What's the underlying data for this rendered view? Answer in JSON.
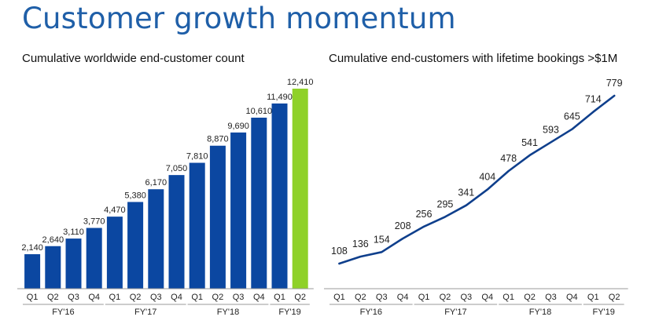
{
  "page": {
    "title": "Customer growth momentum"
  },
  "colors": {
    "title": "#1f5fa8",
    "bar": "#0b47a1",
    "bar_highlight": "#8fd129",
    "line": "#0f3f8c",
    "axis": "#999999"
  },
  "chart_data": [
    {
      "type": "bar",
      "title": "Cumulative worldwide end-customer count",
      "xlabel": "",
      "ylabel": "",
      "categories": [
        "Q1",
        "Q2",
        "Q3",
        "Q4",
        "Q1",
        "Q2",
        "Q3",
        "Q4",
        "Q1",
        "Q2",
        "Q3",
        "Q4",
        "Q1",
        "Q2"
      ],
      "fiscal_years": [
        {
          "label": "FY'16",
          "span": 4
        },
        {
          "label": "FY'17",
          "span": 4
        },
        {
          "label": "FY'18",
          "span": 4
        },
        {
          "label": "FY'19",
          "span": 2
        }
      ],
      "values": [
        2140,
        2640,
        3110,
        3770,
        4470,
        5380,
        6170,
        7050,
        7810,
        8870,
        9690,
        10610,
        11490,
        12410
      ],
      "value_labels": [
        "2,140",
        "2,640",
        "3,110",
        "3,770",
        "4,470",
        "5,380",
        "6,170",
        "7,050",
        "7,810",
        "8,870",
        "9,690",
        "10,610",
        "11,490",
        "12,410"
      ],
      "highlight_index": 13,
      "ylim": [
        0,
        12410
      ],
      "grid": false,
      "legend": "none"
    },
    {
      "type": "line",
      "title": "Cumulative end-customers with lifetime bookings >$1M",
      "xlabel": "",
      "ylabel": "",
      "categories": [
        "Q1",
        "Q2",
        "Q3",
        "Q4",
        "Q1",
        "Q2",
        "Q3",
        "Q4",
        "Q1",
        "Q2",
        "Q3",
        "Q4",
        "Q1",
        "Q2"
      ],
      "fiscal_years": [
        {
          "label": "FY'16",
          "span": 4
        },
        {
          "label": "FY'17",
          "span": 4
        },
        {
          "label": "FY'18",
          "span": 4
        },
        {
          "label": "FY'19",
          "span": 2
        }
      ],
      "values": [
        108,
        136,
        154,
        208,
        256,
        295,
        341,
        404,
        478,
        541,
        593,
        645,
        714,
        779
      ],
      "value_labels": [
        "108",
        "136",
        "154",
        "208",
        "256",
        "295",
        "341",
        "404",
        "478",
        "541",
        "593",
        "645",
        "714",
        "779"
      ],
      "ylim": [
        108,
        779
      ],
      "grid": false,
      "legend": "none"
    }
  ]
}
